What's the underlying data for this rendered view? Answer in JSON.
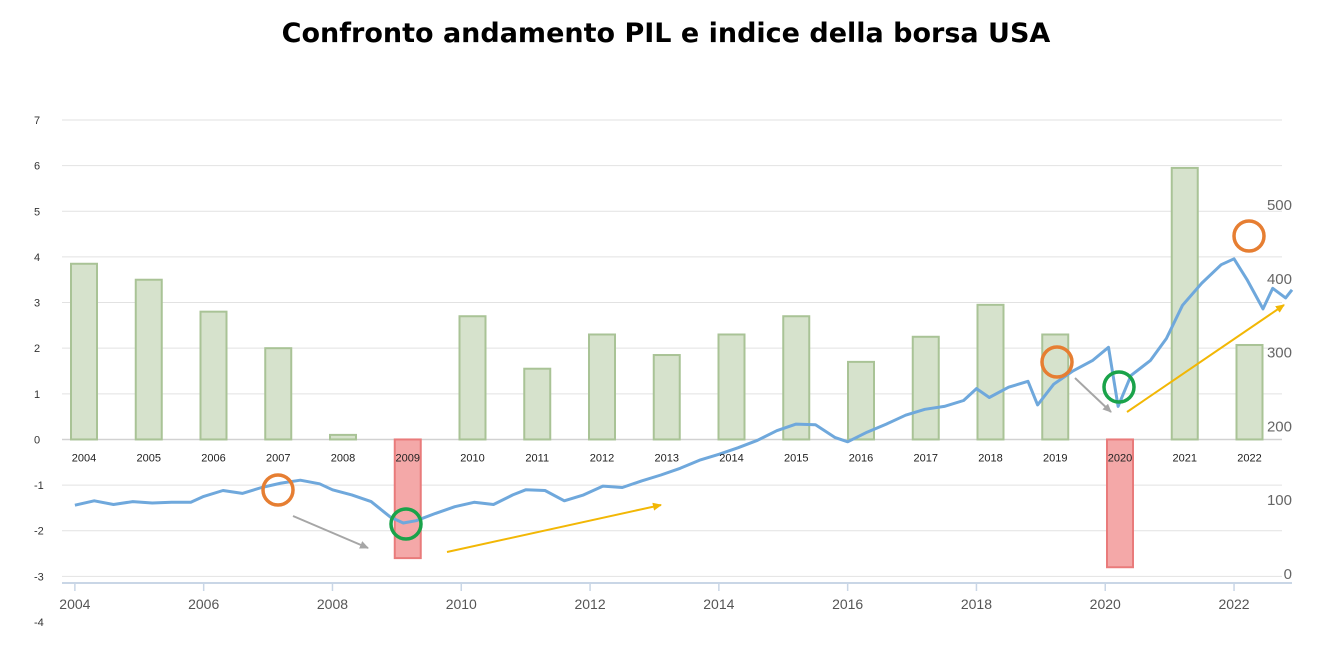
{
  "title": "Confronto andamento PIL e indice della borsa USA",
  "chart_data": [
    {
      "type": "bar",
      "title": "Confronto andamento PIL e indice della borsa USA",
      "categories": [
        "2004",
        "2005",
        "2006",
        "2007",
        "2008",
        "2009",
        "2010",
        "2011",
        "2012",
        "2013",
        "2014",
        "2015",
        "2016",
        "2017",
        "2018",
        "2019",
        "2020",
        "2021",
        "2022"
      ],
      "values": [
        3.85,
        3.5,
        2.8,
        2.0,
        0.1,
        -2.6,
        2.7,
        1.55,
        2.3,
        1.85,
        2.3,
        2.7,
        1.7,
        2.25,
        2.95,
        2.3,
        -2.8,
        5.95,
        2.07
      ],
      "ylim": [
        -4,
        7
      ],
      "yticks": [
        "7",
        "6",
        "5",
        "4",
        "3",
        "2",
        "1",
        "0",
        "-1",
        "-2",
        "-3",
        "-4"
      ],
      "positive_color": "#d6e2cc",
      "positive_border": "#a9c396",
      "negative_color": "#f4a8a8",
      "negative_border": "#e97b7b",
      "grid": true
    },
    {
      "type": "line",
      "x_range": [
        2003.8,
        2022.9
      ],
      "x_ticks": [
        "2004",
        "2006",
        "2008",
        "2010",
        "2012",
        "2014",
        "2016",
        "2018",
        "2020",
        "2022"
      ],
      "ylim": [
        0,
        500
      ],
      "yticks": [
        "500",
        "400",
        "300",
        "200",
        "100",
        "0"
      ],
      "line_color": "#6fa8dc",
      "points": [
        [
          2004.0,
          104
        ],
        [
          2004.3,
          110
        ],
        [
          2004.6,
          105
        ],
        [
          2004.9,
          109
        ],
        [
          2005.2,
          107
        ],
        [
          2005.5,
          108
        ],
        [
          2005.8,
          108
        ],
        [
          2006.0,
          116
        ],
        [
          2006.3,
          124
        ],
        [
          2006.6,
          120
        ],
        [
          2006.9,
          128
        ],
        [
          2007.2,
          134
        ],
        [
          2007.5,
          138
        ],
        [
          2007.8,
          133
        ],
        [
          2008.0,
          125
        ],
        [
          2008.3,
          118
        ],
        [
          2008.6,
          109
        ],
        [
          2008.9,
          88
        ],
        [
          2009.1,
          80
        ],
        [
          2009.3,
          83
        ],
        [
          2009.6,
          93
        ],
        [
          2009.9,
          102
        ],
        [
          2010.2,
          108
        ],
        [
          2010.5,
          105
        ],
        [
          2010.8,
          118
        ],
        [
          2011.0,
          125
        ],
        [
          2011.3,
          124
        ],
        [
          2011.6,
          110
        ],
        [
          2011.9,
          118
        ],
        [
          2012.2,
          130
        ],
        [
          2012.5,
          128
        ],
        [
          2012.8,
          137
        ],
        [
          2013.1,
          145
        ],
        [
          2013.4,
          154
        ],
        [
          2013.7,
          165
        ],
        [
          2014.0,
          173
        ],
        [
          2014.3,
          182
        ],
        [
          2014.6,
          192
        ],
        [
          2014.9,
          205
        ],
        [
          2015.2,
          214
        ],
        [
          2015.5,
          213
        ],
        [
          2015.8,
          196
        ],
        [
          2016.0,
          190
        ],
        [
          2016.3,
          203
        ],
        [
          2016.6,
          214
        ],
        [
          2016.9,
          226
        ],
        [
          2017.2,
          234
        ],
        [
          2017.5,
          238
        ],
        [
          2017.8,
          246
        ],
        [
          2018.0,
          262
        ],
        [
          2018.2,
          250
        ],
        [
          2018.5,
          264
        ],
        [
          2018.8,
          272
        ],
        [
          2018.95,
          240
        ],
        [
          2019.2,
          268
        ],
        [
          2019.5,
          286
        ],
        [
          2019.8,
          300
        ],
        [
          2020.05,
          318
        ],
        [
          2020.2,
          238
        ],
        [
          2020.4,
          280
        ],
        [
          2020.7,
          300
        ],
        [
          2020.95,
          330
        ],
        [
          2021.2,
          375
        ],
        [
          2021.5,
          405
        ],
        [
          2021.8,
          430
        ],
        [
          2022.0,
          438
        ],
        [
          2022.2,
          410
        ],
        [
          2022.45,
          370
        ],
        [
          2022.6,
          398
        ],
        [
          2022.8,
          385
        ],
        [
          2022.9,
          396
        ]
      ]
    }
  ]
}
